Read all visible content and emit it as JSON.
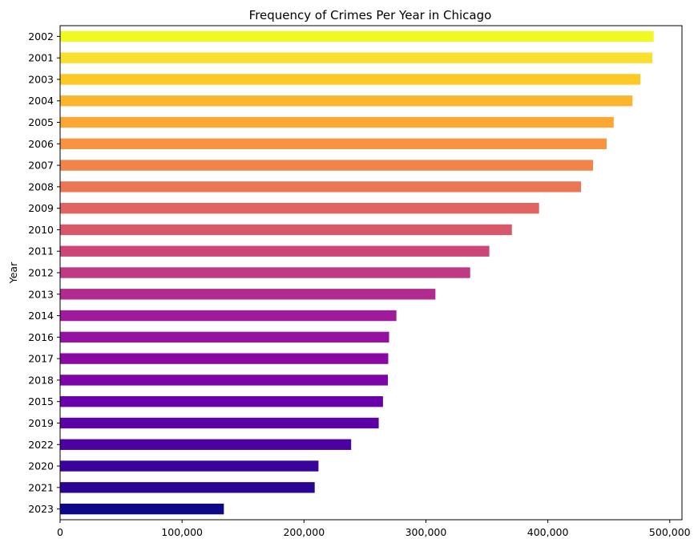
{
  "chart_data": {
    "type": "bar",
    "orientation": "horizontal",
    "title": "Frequency of Crimes Per Year in Chicago",
    "xlabel": "",
    "ylabel": "Year",
    "xlim": [
      0,
      510000
    ],
    "x_ticks": [
      0,
      100000,
      200000,
      300000,
      400000,
      500000
    ],
    "x_tick_labels": [
      "0",
      "100,000",
      "200,000",
      "300,000",
      "400,000",
      "500,000"
    ],
    "grid": false,
    "colormap": "plasma",
    "categories": [
      "2002",
      "2001",
      "2003",
      "2004",
      "2005",
      "2006",
      "2007",
      "2008",
      "2009",
      "2010",
      "2011",
      "2012",
      "2013",
      "2014",
      "2016",
      "2017",
      "2018",
      "2015",
      "2019",
      "2022",
      "2020",
      "2021",
      "2023"
    ],
    "values": [
      486800,
      485700,
      475900,
      469400,
      454000,
      448200,
      437100,
      427200,
      392800,
      370500,
      352000,
      336300,
      307800,
      275800,
      269800,
      269100,
      268800,
      264800,
      261300,
      238700,
      211900,
      208800,
      134300
    ],
    "colors": [
      "#f0f921",
      "#f9e02e",
      "#fdc926",
      "#fdb42f",
      "#fca636",
      "#f89441",
      "#f1844b",
      "#ea7655",
      "#e16462",
      "#d8576b",
      "#cc4778",
      "#bf3984",
      "#b12a90",
      "#a01a9c",
      "#9511a1",
      "#8a09a5",
      "#7e03a8",
      "#6a00a8",
      "#5c01a6",
      "#4c02a1",
      "#3a049a",
      "#2a0593",
      "#0d0887"
    ]
  }
}
